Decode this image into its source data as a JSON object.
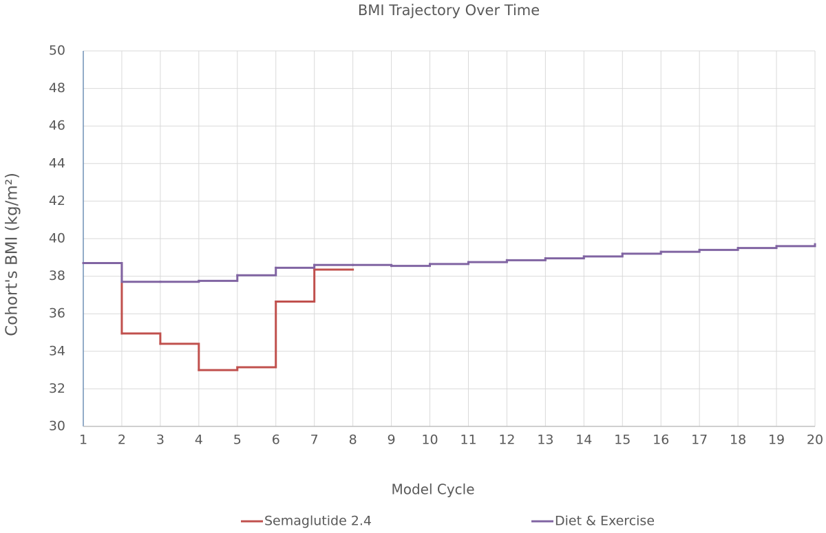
{
  "chart_data": {
    "type": "step",
    "title": "BMI Trajectory Over Time",
    "x_label": "Model Cycle",
    "y_label": "Cohort's BMI (kg/m²)",
    "x": [
      1,
      2,
      3,
      4,
      5,
      6,
      7,
      8,
      9,
      10,
      11,
      12,
      13,
      14,
      15,
      16,
      17,
      18,
      19,
      20
    ],
    "series": [
      {
        "name": "Semaglutide 2.4",
        "color": "#c0504d",
        "values": [
          38.7,
          34.95,
          34.4,
          33.0,
          33.15,
          36.65,
          38.35,
          null,
          null,
          null,
          null,
          null,
          null,
          null,
          null,
          null,
          null,
          null,
          null,
          null
        ]
      },
      {
        "name": "Diet & Exercise",
        "color": "#8064a2",
        "values": [
          38.7,
          37.7,
          37.7,
          37.75,
          38.05,
          38.45,
          38.6,
          38.6,
          38.55,
          38.65,
          38.75,
          38.85,
          38.95,
          39.05,
          39.2,
          39.3,
          39.4,
          39.5,
          39.6,
          39.7
        ]
      }
    ],
    "xlim": [
      1,
      20
    ],
    "xticks": [
      1,
      2,
      3,
      4,
      5,
      6,
      7,
      8,
      9,
      10,
      11,
      12,
      13,
      14,
      15,
      16,
      17,
      18,
      19,
      20
    ],
    "ylim": [
      30,
      50
    ],
    "yticks": [
      30,
      32,
      34,
      36,
      38,
      40,
      42,
      44,
      46,
      48,
      50
    ],
    "grid": true,
    "legend": "bottom"
  }
}
